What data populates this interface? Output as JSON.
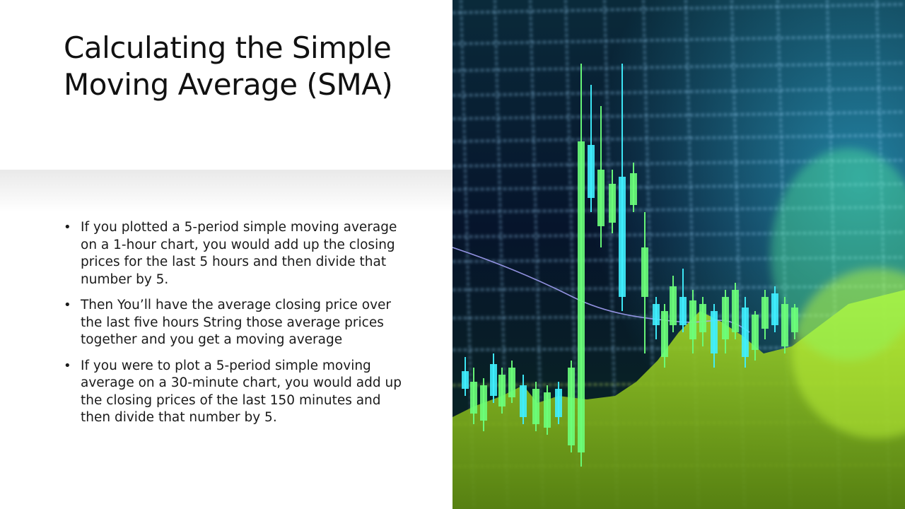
{
  "slide": {
    "title": "Calculating the Simple Moving Average (SMA)",
    "bullets": [
      "If you plotted a 5-period simple moving average on a 1-hour chart, you would add up the closing prices for the last 5 hours and then divide that number by 5.",
      "Then You’ll have the average closing price over the last five hours String those average prices together and you get a moving average",
      "If you were to plot a 5-period simple moving average on a 30-minute chart, you would add up the closing prices of the last 150 minutes and then divide that number by 5."
    ],
    "bullet_symbol": "•"
  },
  "image": {
    "icon": "stock-chart-photo",
    "colors": {
      "background": "#06142b",
      "grid": "#9fd8ff",
      "candle_cyan": "#3ff0ff",
      "candle_green": "#6bff7a",
      "area_lime": "#b8f23a",
      "trend_line": "#a9a6ff"
    }
  }
}
